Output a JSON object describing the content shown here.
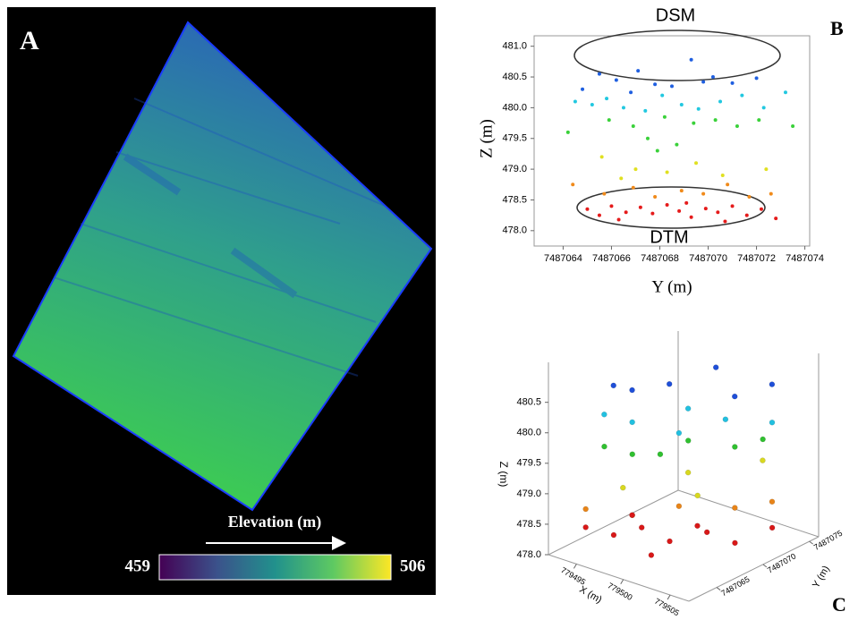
{
  "chart_data": [
    {
      "type": "raster",
      "title": "A",
      "colorbar_label": "Elevation (m)",
      "clim": [
        459,
        506
      ]
    },
    {
      "type": "scatter",
      "title": "B",
      "annotations": [
        "DSM",
        "DTM"
      ],
      "xlabel": "Y (m)",
      "ylabel": "Z (m)",
      "xlim": [
        7487062.8,
        7487074.2
      ],
      "xticks": [
        7487064,
        7487066,
        7487068,
        7487070,
        7487072,
        7487074
      ],
      "ylim": [
        477.75,
        481.17
      ],
      "yticks": [
        {
          "value": 478,
          "label": "478.0"
        },
        478.5,
        {
          "value": 479,
          "label": "479.0"
        },
        479.5,
        {
          "value": 480,
          "label": "480.0"
        },
        480.5,
        {
          "value": 481,
          "label": "481.0"
        }
      ],
      "series": [
        {
          "color": "#1f5fe0",
          "x": [
            7487065.5,
            7487066.2,
            7487067.1,
            7487068.5,
            7487069.3,
            7487070.2,
            7487071.0,
            7487072.0,
            7487064.8,
            7487067.8,
            7487069.8,
            7487066.8
          ],
          "values": [
            480.55,
            480.45,
            480.6,
            480.35,
            480.78,
            480.5,
            480.4,
            480.48,
            480.3,
            480.38,
            480.42,
            480.25
          ]
        },
        {
          "color": "#22c8e0",
          "x": [
            7487064.5,
            7487065.8,
            7487066.5,
            7487067.4,
            7487068.1,
            7487068.9,
            7487069.6,
            7487070.5,
            7487071.4,
            7487072.3,
            7487073.2,
            7487065.2
          ],
          "values": [
            480.1,
            480.15,
            480.0,
            479.95,
            480.2,
            480.05,
            479.98,
            480.1,
            480.2,
            480.0,
            480.25,
            480.05
          ]
        },
        {
          "color": "#3ad13a",
          "x": [
            7487064.2,
            7487065.9,
            7487066.9,
            7487067.5,
            7487068.2,
            7487068.7,
            7487069.4,
            7487070.3,
            7487071.2,
            7487072.1,
            7487073.5,
            7487067.9
          ],
          "values": [
            479.6,
            479.8,
            479.7,
            479.5,
            479.85,
            479.4,
            479.75,
            479.8,
            479.7,
            479.8,
            479.7,
            479.3
          ]
        },
        {
          "color": "#e0e020",
          "x": [
            7487065.6,
            7487067.0,
            7487068.3,
            7487069.5,
            7487070.6,
            7487072.4,
            7487066.4
          ],
          "values": [
            479.2,
            479.0,
            478.95,
            479.1,
            478.9,
            479.0,
            478.85
          ]
        },
        {
          "color": "#f08a1a",
          "x": [
            7487064.4,
            7487065.7,
            7487066.9,
            7487067.8,
            7487068.9,
            7487069.8,
            7487070.8,
            7487071.7,
            7487072.6
          ],
          "values": [
            478.75,
            478.6,
            478.7,
            478.55,
            478.65,
            478.6,
            478.75,
            478.55,
            478.6
          ]
        },
        {
          "color": "#e51b1b",
          "x": [
            7487065.0,
            7487065.5,
            7487066.0,
            7487066.6,
            7487067.2,
            7487067.7,
            7487068.3,
            7487068.8,
            7487069.3,
            7487069.9,
            7487070.4,
            7487071.0,
            7487071.6,
            7487072.2,
            7487072.8,
            7487066.3,
            7487069.1,
            7487070.7
          ],
          "values": [
            478.35,
            478.25,
            478.4,
            478.3,
            478.38,
            478.28,
            478.42,
            478.32,
            478.22,
            478.36,
            478.3,
            478.4,
            478.25,
            478.35,
            478.2,
            478.18,
            478.45,
            478.15
          ]
        }
      ]
    },
    {
      "type": "scatter3d",
      "title": "C",
      "xlabel": "X (m)",
      "ylabel": "Y (m)",
      "zlabel": "Z (m)",
      "xlim": [
        779492,
        779507
      ],
      "xticks": [
        779495,
        779500,
        779505
      ],
      "ylim": [
        7487062,
        7487076
      ],
      "yticks": [
        7487065,
        7487070,
        7487075
      ],
      "zlim": [
        478,
        481.2
      ],
      "zticks": [
        {
          "value": 478,
          "label": "478.0"
        },
        478.5,
        {
          "value": 479,
          "label": "479.0"
        },
        479.5,
        {
          "value": 480,
          "label": "480.0"
        },
        480.5
      ],
      "series": [
        {
          "color": "#1f4fd8",
          "x": [
            779494,
            779495,
            779499,
            779502,
            779497,
            779504
          ],
          "y": [
            7487067,
            7487068,
            7487073,
            7487072,
            7487070,
            7487074
          ],
          "values": [
            480.5,
            480.4,
            480.6,
            480.35,
            480.45,
            480.5
          ]
        },
        {
          "color": "#22c0e0",
          "x": [
            779494,
            779496,
            779499,
            779502,
            779505,
            779500
          ],
          "y": [
            7487066,
            7487067,
            7487070,
            7487071,
            7487073,
            7487068
          ],
          "values": [
            480.1,
            480.0,
            480.15,
            480.05,
            480.0,
            479.95
          ]
        },
        {
          "color": "#30c030",
          "x": [
            779495,
            779497,
            779500,
            779503,
            779505,
            779498
          ],
          "y": [
            7487065,
            7487066,
            7487069,
            7487071,
            7487072,
            7487068
          ],
          "values": [
            479.7,
            479.6,
            479.75,
            479.65,
            479.8,
            479.5
          ]
        },
        {
          "color": "#d8d820",
          "x": [
            779496,
            779499,
            779503,
            779501
          ],
          "y": [
            7487066,
            7487070,
            7487074,
            7487069
          ],
          "values": [
            479.0,
            479.1,
            479.2,
            478.9
          ]
        },
        {
          "color": "#e88418",
          "x": [
            779494,
            779497,
            779500,
            779503,
            779505
          ],
          "y": [
            7487064,
            7487066,
            7487068,
            7487071,
            7487073
          ],
          "values": [
            478.7,
            478.6,
            478.75,
            478.65,
            478.7
          ]
        },
        {
          "color": "#d81818",
          "x": [
            779494,
            779496,
            779498,
            779500,
            779502,
            779504,
            779506,
            779499,
            779501,
            779495
          ],
          "y": [
            7487064,
            7487065,
            7487066,
            7487067,
            7487069,
            7487070,
            7487072,
            7487071,
            7487064,
            7487068
          ],
          "values": [
            478.4,
            478.3,
            478.45,
            478.25,
            478.35,
            478.2,
            478.4,
            478.15,
            478.3,
            478.35
          ]
        }
      ]
    }
  ]
}
